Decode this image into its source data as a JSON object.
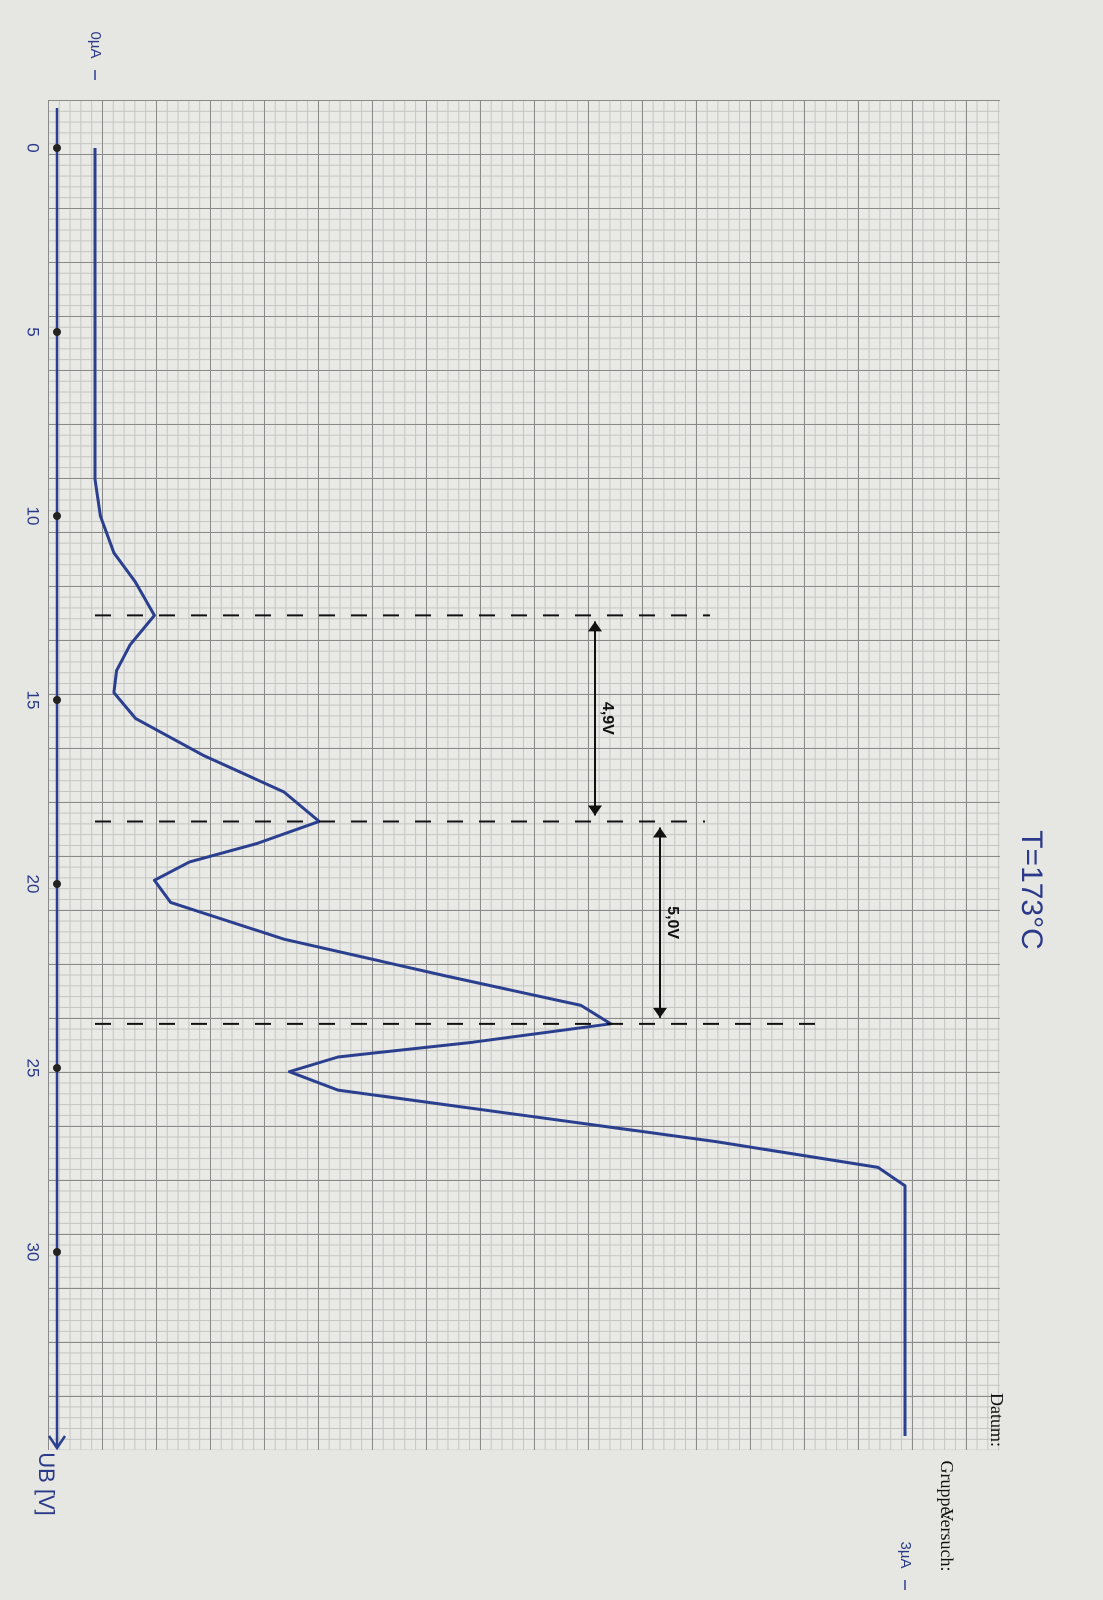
{
  "chart_data": {
    "type": "line",
    "title": "T=173°C",
    "x_label": "UB [V]",
    "x": [
      0,
      9,
      10,
      11,
      11.8,
      12.7,
      13.5,
      14.2,
      14.8,
      15.5,
      16.5,
      17.5,
      18.3,
      18.9,
      19.4,
      19.9,
      20.5,
      21.5,
      22.5,
      23.3,
      23.8,
      24.3,
      24.7,
      25.1,
      25.6,
      26.3,
      27.0,
      27.7,
      28.2,
      35
    ],
    "series": [
      {
        "color": "#2b3f8f",
        "values": [
          0,
          0,
          0.02,
          0.07,
          0.15,
          0.22,
          0.13,
          0.08,
          0.07,
          0.15,
          0.4,
          0.7,
          0.83,
          0.6,
          0.35,
          0.22,
          0.28,
          0.7,
          1.3,
          1.8,
          1.91,
          1.4,
          0.9,
          0.72,
          0.9,
          1.6,
          2.3,
          2.9,
          3.0,
          3.0
        ]
      }
    ],
    "xlim": [
      0,
      35
    ],
    "xticks": [
      0,
      5,
      10,
      15,
      20,
      25,
      30
    ],
    "ylim": [
      0,
      3
    ],
    "yticks": [
      {
        "value": 0,
        "label": "0µA"
      },
      {
        "value": 3,
        "label": "3µA"
      }
    ],
    "annotations": [
      {
        "text": "4,9V",
        "from": 5,
        "to": 12
      },
      {
        "text": "5,0V",
        "from": 12,
        "to": 20
      }
    ],
    "form_labels": [
      "Versuch:",
      "Gruppe:",
      "Datum:"
    ]
  }
}
